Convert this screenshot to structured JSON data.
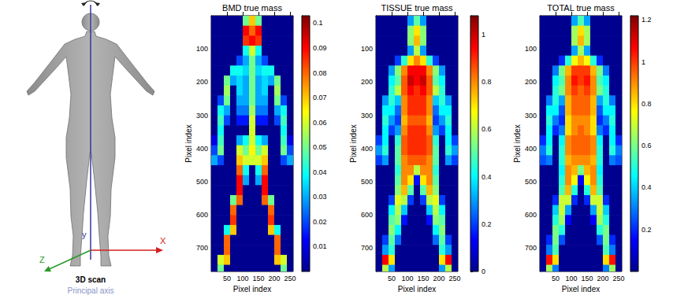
{
  "chart_data": [
    {
      "type": "heatmap",
      "title": "BMD true mass",
      "x_label": "Pixel index",
      "y_label": "Pixel index",
      "x": [
        10,
        30,
        50,
        70,
        90,
        110,
        130,
        150,
        170,
        190,
        210,
        230,
        250
      ],
      "y": [
        15,
        45,
        75,
        105,
        135,
        165,
        195,
        225,
        255,
        285,
        315,
        345,
        375,
        405,
        435,
        465,
        495,
        525,
        555,
        585,
        615,
        645,
        675,
        705,
        735,
        765
      ],
      "xlim": [
        0,
        260
      ],
      "ylim": [
        770,
        0
      ],
      "xticks": [
        50,
        100,
        150,
        200,
        250
      ],
      "yticks": [
        100,
        200,
        300,
        400,
        500,
        600,
        700
      ],
      "colorbar_range": [
        0,
        0.103
      ],
      "colorbar_ticks": [
        0.01,
        0.02,
        0.03,
        0.04,
        0.05,
        0.06,
        0.07,
        0.08,
        0.09,
        0.1
      ],
      "cells": [
        [
          0,
          0,
          0,
          0,
          0,
          0.05,
          0.07,
          0.05,
          0,
          0,
          0,
          0,
          0
        ],
        [
          0,
          0,
          0,
          0,
          0,
          0.09,
          0.08,
          0.09,
          0,
          0,
          0,
          0,
          0
        ],
        [
          0,
          0,
          0,
          0,
          0,
          0.085,
          0.09,
          0.085,
          0,
          0,
          0,
          0,
          0
        ],
        [
          0,
          0,
          0,
          0,
          0,
          0.04,
          0.06,
          0.04,
          0,
          0,
          0,
          0,
          0
        ],
        [
          0,
          0,
          0,
          0,
          0.02,
          0.03,
          0.05,
          0.03,
          0.02,
          0,
          0,
          0,
          0
        ],
        [
          0,
          0,
          0,
          0.04,
          0.04,
          0.035,
          0.05,
          0.035,
          0.04,
          0.04,
          0,
          0,
          0
        ],
        [
          0,
          0,
          0.05,
          0.03,
          0.035,
          0.03,
          0.05,
          0.03,
          0.035,
          0.03,
          0.05,
          0,
          0
        ],
        [
          0,
          0,
          0.055,
          0,
          0.035,
          0.03,
          0.05,
          0.03,
          0.035,
          0,
          0.055,
          0,
          0
        ],
        [
          0,
          0.02,
          0.05,
          0,
          0.03,
          0.03,
          0.05,
          0.03,
          0.03,
          0,
          0.05,
          0.02,
          0
        ],
        [
          0,
          0.04,
          0.03,
          0,
          0.025,
          0.025,
          0.055,
          0.025,
          0.025,
          0,
          0.03,
          0.04,
          0
        ],
        [
          0,
          0.045,
          0.02,
          0,
          0.015,
          0.015,
          0.06,
          0.015,
          0.015,
          0,
          0.02,
          0.045,
          0
        ],
        [
          0,
          0.04,
          0,
          0,
          0,
          0,
          0.06,
          0,
          0,
          0,
          0,
          0.04,
          0
        ],
        [
          0.01,
          0.045,
          0,
          0,
          0.03,
          0.04,
          0.06,
          0.04,
          0.03,
          0,
          0,
          0.045,
          0.01
        ],
        [
          0.02,
          0.05,
          0,
          0,
          0.06,
          0.05,
          0.065,
          0.05,
          0.06,
          0,
          0,
          0.05,
          0.02
        ],
        [
          0.03,
          0.02,
          0,
          0,
          0.07,
          0.06,
          0.06,
          0.06,
          0.07,
          0,
          0,
          0.02,
          0.03
        ],
        [
          0,
          0,
          0,
          0,
          0.08,
          0.04,
          0,
          0.04,
          0.08,
          0,
          0,
          0,
          0
        ],
        [
          0,
          0,
          0,
          0,
          0.09,
          0.03,
          0,
          0.03,
          0.09,
          0,
          0,
          0,
          0
        ],
        [
          0,
          0,
          0,
          0,
          0.09,
          0,
          0,
          0,
          0.09,
          0,
          0,
          0,
          0
        ],
        [
          0,
          0,
          0,
          0.05,
          0.08,
          0,
          0,
          0,
          0.08,
          0.05,
          0,
          0,
          0
        ],
        [
          0,
          0,
          0,
          0.08,
          0,
          0,
          0,
          0,
          0,
          0.08,
          0,
          0,
          0
        ],
        [
          0,
          0,
          0,
          0.085,
          0,
          0,
          0,
          0,
          0,
          0.085,
          0,
          0,
          0
        ],
        [
          0,
          0,
          0.04,
          0.07,
          0,
          0,
          0,
          0,
          0,
          0.07,
          0.04,
          0,
          0
        ],
        [
          0,
          0,
          0.08,
          0,
          0,
          0,
          0,
          0,
          0,
          0,
          0.08,
          0,
          0
        ],
        [
          0,
          0,
          0.08,
          0,
          0,
          0,
          0,
          0,
          0,
          0,
          0.08,
          0,
          0
        ],
        [
          0,
          0.06,
          0.07,
          0,
          0,
          0,
          0,
          0,
          0,
          0,
          0.07,
          0.06,
          0
        ],
        [
          0,
          0.05,
          0,
          0,
          0,
          0,
          0,
          0,
          0,
          0,
          0,
          0.05,
          0
        ]
      ]
    },
    {
      "type": "heatmap",
      "title": "TISSUE true mass",
      "x_label": "Pixel index",
      "y_label": "Pixel index",
      "x": [
        10,
        30,
        50,
        70,
        90,
        110,
        130,
        150,
        170,
        190,
        210,
        230,
        250
      ],
      "y": [
        15,
        45,
        75,
        105,
        135,
        165,
        195,
        225,
        255,
        285,
        315,
        345,
        375,
        405,
        435,
        465,
        495,
        525,
        555,
        585,
        615,
        645,
        675,
        705,
        735,
        765
      ],
      "xlim": [
        0,
        260
      ],
      "ylim": [
        770,
        0
      ],
      "xticks": [
        50,
        100,
        150,
        200,
        250
      ],
      "yticks": [
        100,
        200,
        300,
        400,
        500,
        600,
        700
      ],
      "colorbar_range": [
        0,
        1.08
      ],
      "colorbar_ticks": [
        0,
        0.2,
        0.4,
        0.6,
        0.8,
        1
      ],
      "cells": [
        [
          0,
          0,
          0,
          0,
          0,
          0.3,
          0.5,
          0.3,
          0,
          0,
          0,
          0,
          0
        ],
        [
          0,
          0,
          0,
          0,
          0,
          0.55,
          0.7,
          0.55,
          0,
          0,
          0,
          0,
          0
        ],
        [
          0,
          0,
          0,
          0,
          0,
          0.55,
          0.75,
          0.55,
          0,
          0,
          0,
          0,
          0
        ],
        [
          0,
          0,
          0,
          0,
          0,
          0.3,
          0.6,
          0.3,
          0,
          0,
          0,
          0,
          0
        ],
        [
          0,
          0,
          0,
          0.2,
          0.45,
          0.7,
          0.8,
          0.7,
          0.45,
          0.2,
          0,
          0,
          0
        ],
        [
          0,
          0,
          0.3,
          0.55,
          0.8,
          0.95,
          0.95,
          0.95,
          0.8,
          0.55,
          0.3,
          0,
          0
        ],
        [
          0,
          0,
          0.4,
          0.5,
          0.85,
          1.0,
          0.95,
          1.0,
          0.85,
          0.5,
          0.4,
          0,
          0
        ],
        [
          0,
          0,
          0.45,
          0.6,
          0.85,
          0.95,
          0.9,
          0.95,
          0.85,
          0.6,
          0.45,
          0,
          0
        ],
        [
          0,
          0.3,
          0.45,
          0.35,
          0.8,
          0.9,
          0.9,
          0.9,
          0.8,
          0.35,
          0.45,
          0.3,
          0
        ],
        [
          0,
          0.4,
          0.4,
          0.25,
          0.8,
          0.9,
          0.9,
          0.9,
          0.8,
          0.25,
          0.4,
          0.4,
          0
        ],
        [
          0,
          0.45,
          0.3,
          0.2,
          0.75,
          0.85,
          0.85,
          0.85,
          0.75,
          0.2,
          0.3,
          0.45,
          0
        ],
        [
          0,
          0.4,
          0.2,
          0.3,
          0.8,
          0.9,
          0.9,
          0.9,
          0.8,
          0.3,
          0.2,
          0.4,
          0
        ],
        [
          0.2,
          0.4,
          0,
          0.45,
          0.85,
          0.9,
          0.9,
          0.9,
          0.85,
          0.45,
          0,
          0.4,
          0.2
        ],
        [
          0.3,
          0.45,
          0,
          0.5,
          0.85,
          0.9,
          0.9,
          0.9,
          0.85,
          0.5,
          0,
          0.45,
          0.3
        ],
        [
          0.2,
          0.3,
          0,
          0.5,
          0.8,
          0.85,
          0.85,
          0.85,
          0.8,
          0.5,
          0,
          0.3,
          0.2
        ],
        [
          0,
          0,
          0,
          0.45,
          0.8,
          0.8,
          0.6,
          0.8,
          0.8,
          0.45,
          0,
          0,
          0
        ],
        [
          0,
          0,
          0,
          0.5,
          0.8,
          0.7,
          0.15,
          0.7,
          0.8,
          0.5,
          0,
          0,
          0
        ],
        [
          0,
          0,
          0,
          0.55,
          0.75,
          0.5,
          0,
          0.5,
          0.75,
          0.55,
          0,
          0,
          0
        ],
        [
          0,
          0,
          0.2,
          0.65,
          0.6,
          0.2,
          0,
          0.2,
          0.6,
          0.65,
          0.2,
          0,
          0
        ],
        [
          0,
          0,
          0.4,
          0.6,
          0.35,
          0,
          0,
          0,
          0.35,
          0.6,
          0.4,
          0,
          0
        ],
        [
          0,
          0,
          0.5,
          0.55,
          0.15,
          0,
          0,
          0,
          0.15,
          0.55,
          0.5,
          0,
          0
        ],
        [
          0,
          0,
          0.55,
          0.4,
          0,
          0,
          0,
          0,
          0,
          0.4,
          0.55,
          0,
          0
        ],
        [
          0,
          0.2,
          0.5,
          0.25,
          0,
          0,
          0,
          0,
          0,
          0.25,
          0.5,
          0.2,
          0
        ],
        [
          0,
          0.3,
          0.45,
          0,
          0,
          0,
          0,
          0,
          0,
          0,
          0.45,
          0.3,
          0
        ],
        [
          0,
          0.95,
          0.7,
          0,
          0,
          0,
          0,
          0,
          0,
          0,
          0.7,
          0.95,
          0
        ],
        [
          0,
          0.6,
          0.3,
          0,
          0,
          0,
          0,
          0,
          0,
          0,
          0.3,
          0.6,
          0
        ]
      ]
    },
    {
      "type": "heatmap",
      "title": "TOTAL true mass",
      "x_label": "Pixel index",
      "y_label": "Pixel index",
      "x": [
        10,
        30,
        50,
        70,
        90,
        110,
        130,
        150,
        170,
        190,
        210,
        230,
        250
      ],
      "y": [
        15,
        45,
        75,
        105,
        135,
        165,
        195,
        225,
        255,
        285,
        315,
        345,
        375,
        405,
        435,
        465,
        495,
        525,
        555,
        585,
        615,
        645,
        675,
        705,
        735,
        765
      ],
      "xlim": [
        0,
        260
      ],
      "ylim": [
        770,
        0
      ],
      "xticks": [
        50,
        100,
        150,
        200,
        250
      ],
      "yticks": [
        100,
        200,
        300,
        400,
        500,
        600,
        700
      ],
      "colorbar_range": [
        0,
        1.22
      ],
      "colorbar_ticks": [
        0.2,
        0.4,
        0.6,
        0.8,
        1,
        1.2
      ],
      "cells": [
        [
          0,
          0,
          0,
          0,
          0,
          0.35,
          0.55,
          0.35,
          0,
          0,
          0,
          0,
          0
        ],
        [
          0,
          0,
          0,
          0,
          0,
          0.65,
          0.8,
          0.65,
          0,
          0,
          0,
          0,
          0
        ],
        [
          0,
          0,
          0,
          0,
          0,
          0.65,
          0.85,
          0.65,
          0,
          0,
          0,
          0,
          0
        ],
        [
          0,
          0,
          0,
          0,
          0,
          0.35,
          0.65,
          0.35,
          0,
          0,
          0,
          0,
          0
        ],
        [
          0,
          0,
          0,
          0.2,
          0.5,
          0.75,
          0.85,
          0.75,
          0.5,
          0.2,
          0,
          0,
          0
        ],
        [
          0,
          0,
          0.3,
          0.6,
          0.85,
          1.0,
          1.0,
          1.0,
          0.85,
          0.6,
          0.3,
          0,
          0
        ],
        [
          0,
          0,
          0.45,
          0.55,
          0.9,
          1.05,
          1.0,
          1.05,
          0.9,
          0.55,
          0.45,
          0,
          0
        ],
        [
          0,
          0,
          0.5,
          0.6,
          0.9,
          1.0,
          0.95,
          1.0,
          0.9,
          0.6,
          0.5,
          0,
          0
        ],
        [
          0,
          0.3,
          0.5,
          0.35,
          0.85,
          0.95,
          0.95,
          0.95,
          0.85,
          0.35,
          0.5,
          0.3,
          0
        ],
        [
          0,
          0.45,
          0.45,
          0.25,
          0.85,
          0.95,
          0.95,
          0.95,
          0.85,
          0.25,
          0.45,
          0.45,
          0
        ],
        [
          0,
          0.5,
          0.3,
          0.2,
          0.8,
          0.9,
          0.9,
          0.9,
          0.8,
          0.2,
          0.3,
          0.5,
          0
        ],
        [
          0,
          0.45,
          0.2,
          0.3,
          0.8,
          0.9,
          0.95,
          0.9,
          0.8,
          0.3,
          0.2,
          0.45,
          0
        ],
        [
          0.2,
          0.45,
          0,
          0.45,
          0.9,
          0.95,
          0.95,
          0.95,
          0.9,
          0.45,
          0,
          0.45,
          0.2
        ],
        [
          0.3,
          0.5,
          0,
          0.5,
          0.9,
          0.95,
          0.95,
          0.95,
          0.9,
          0.5,
          0,
          0.5,
          0.3
        ],
        [
          0.25,
          0.3,
          0,
          0.5,
          0.85,
          0.9,
          0.9,
          0.9,
          0.85,
          0.5,
          0,
          0.3,
          0.25
        ],
        [
          0,
          0,
          0,
          0.45,
          0.9,
          0.85,
          0.6,
          0.85,
          0.9,
          0.45,
          0,
          0,
          0
        ],
        [
          0,
          0,
          0,
          0.5,
          0.9,
          0.75,
          0.15,
          0.75,
          0.9,
          0.5,
          0,
          0,
          0
        ],
        [
          0,
          0,
          0,
          0.55,
          0.85,
          0.5,
          0,
          0.5,
          0.85,
          0.55,
          0,
          0,
          0
        ],
        [
          0,
          0,
          0.2,
          0.7,
          0.7,
          0.2,
          0,
          0.2,
          0.7,
          0.7,
          0.2,
          0,
          0
        ],
        [
          0,
          0,
          0.4,
          0.7,
          0.35,
          0,
          0,
          0,
          0.35,
          0.7,
          0.4,
          0,
          0
        ],
        [
          0,
          0,
          0.5,
          0.65,
          0.15,
          0,
          0,
          0,
          0.15,
          0.65,
          0.5,
          0,
          0
        ],
        [
          0,
          0,
          0.6,
          0.5,
          0,
          0,
          0,
          0,
          0,
          0.5,
          0.6,
          0,
          0
        ],
        [
          0,
          0.2,
          0.6,
          0.25,
          0,
          0,
          0,
          0,
          0,
          0.25,
          0.6,
          0.2,
          0
        ],
        [
          0,
          0.3,
          0.55,
          0,
          0,
          0,
          0,
          0,
          0,
          0,
          0.55,
          0.3,
          0
        ],
        [
          0,
          1.05,
          0.8,
          0,
          0,
          0,
          0,
          0,
          0,
          0,
          0.8,
          1.05,
          0
        ],
        [
          0,
          0.65,
          0.3,
          0,
          0,
          0,
          0,
          0,
          0,
          0,
          0.3,
          0.65,
          0
        ]
      ]
    }
  ],
  "diagram": {
    "x_axis_label": "X",
    "y_axis_label": "y",
    "z_axis_label": "Z",
    "caption": "3D scan",
    "subcaption": "Principal axis"
  }
}
